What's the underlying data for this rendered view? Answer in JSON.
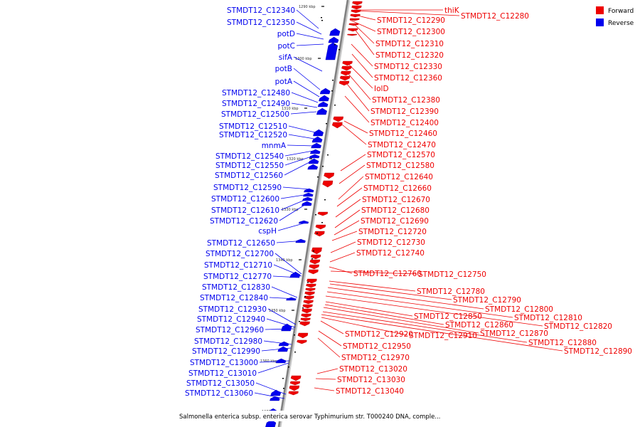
{
  "caption": "Salmonella enterica subsp. enterica serovar Typhimurium str. T000240 DNA, comple...",
  "legend": [
    {
      "label": "Forward",
      "color": "#ee0000"
    },
    {
      "label": "Reverse",
      "color": "#0000ee"
    }
  ],
  "colors": {
    "forward": "#ee0000",
    "reverse": "#0000ee",
    "backbone": "#808080"
  },
  "ticks": [
    "1290 kbp",
    "1300 kbp",
    "1310 kbp",
    "1320 kbp",
    "1330 kbp",
    "1340 kbp",
    "1350 kbp",
    "1360 kbp",
    "1370 kbp"
  ],
  "forward_genes": [
    "thiK",
    "STMDT12_C12280",
    "STMDT12_C12290",
    "STMDT12_C12300",
    "STMDT12_C12310",
    "STMDT12_C12320",
    "STMDT12_C12330",
    "STMDT12_C12360",
    "IolD",
    "STMDT12_C12380",
    "STMDT12_C12390",
    "STMDT12_C12400",
    "STMDT12_C12460",
    "STMDT12_C12470",
    "STMDT12_C12570",
    "STMDT12_C12580",
    "STMDT12_C12640",
    "STMDT12_C12660",
    "STMDT12_C12670",
    "STMDT12_C12680",
    "STMDT12_C12690",
    "STMDT12_C12720",
    "STMDT12_C12730",
    "STMDT12_C12740",
    "STMDT12_C12760",
    "STMDT12_C12750",
    "STMDT12_C12780",
    "STMDT12_C12790",
    "STMDT12_C12800",
    "STMDT12_C12810",
    "STMDT12_C12820",
    "STMDT12_C12850",
    "STMDT12_C12860",
    "STMDT12_C12870",
    "STMDT12_C12880",
    "STMDT12_C12890",
    "STMDT12_C12910",
    "STMDT12_C12920",
    "STMDT12_C12950",
    "STMDT12_C12970",
    "STMDT12_C13020",
    "STMDT12_C13030",
    "STMDT12_C13040"
  ],
  "reverse_genes": [
    "STMDT12_C12340",
    "STMDT12_C12350",
    "potD",
    "potC",
    "sifA",
    "potB",
    "potA",
    "STMDT12_C12480",
    "STMDT12_C12490",
    "STMDT12_C12500",
    "STMDT12_C12510",
    "STMDT12_C12520",
    "mnmA",
    "STMDT12_C12540",
    "STMDT12_C12550",
    "STMDT12_C12560",
    "STMDT12_C12590",
    "STMDT12_C12600",
    "STMDT12_C12610",
    "STMDT12_C12620",
    "cspH",
    "STMDT12_C12650",
    "STMDT12_C12700",
    "STMDT12_C12710",
    "STMDT12_C12770",
    "STMDT12_C12830",
    "STMDT12_C12840",
    "STMDT12_C12930",
    "STMDT12_C12940",
    "STMDT12_C12960",
    "STMDT12_C12980",
    "STMDT12_C12990",
    "STMDT12_C13000",
    "STMDT12_C13010",
    "STMDT12_C13050",
    "STMDT12_C13060"
  ]
}
